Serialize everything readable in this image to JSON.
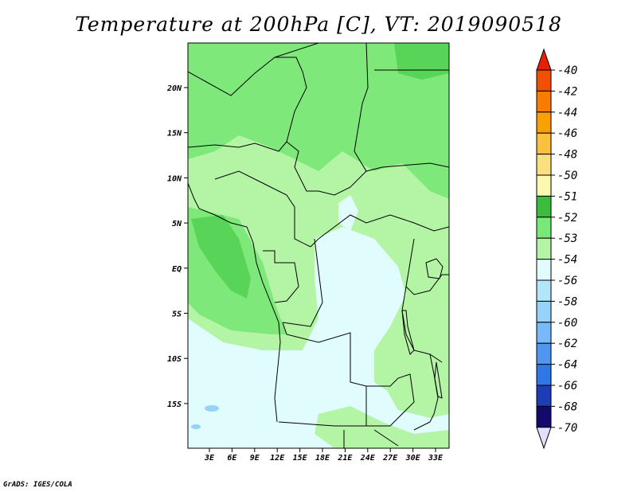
{
  "title": "Temperature at 200hPa [C], VT: 2019090518",
  "credit": "GrADS: IGES/COLA",
  "map": {
    "lat_labels": [
      "20N",
      "15N",
      "10N",
      "5N",
      "EQ",
      "5S",
      "10S",
      "15S"
    ],
    "lon_labels": [
      "3E",
      "6E",
      "9E",
      "12E",
      "15E",
      "18E",
      "21E",
      "24E",
      "27E",
      "30E",
      "33E"
    ],
    "lat_range": [
      -20.5,
      25
    ],
    "lon_range": [
      0.5,
      36
    ],
    "region_colors": {
      "paleblue": "#e0fcfc",
      "lightgreen": "#b4f5a5",
      "green": "#7ee87a",
      "darkgreen": "#58d459",
      "lakeblue": "#96d2fa"
    }
  },
  "colorbar": {
    "labels": [
      "-40",
      "-42",
      "-44",
      "-46",
      "-48",
      "-50",
      "-51",
      "-52",
      "-53",
      "-54",
      "-56",
      "-58",
      "-60",
      "-62",
      "-64",
      "-66",
      "-68",
      "-70"
    ],
    "colors": [
      "#e62000",
      "#f05000",
      "#f87c00",
      "#faa000",
      "#fac040",
      "#fce080",
      "#fcf8b0",
      "#3cbc3c",
      "#78e878",
      "#b4f5a5",
      "#e0fcfc",
      "#b4e6fa",
      "#96d2fa",
      "#78b9fa",
      "#5096f0",
      "#2e78e6",
      "#1e3cb4",
      "#140a6e",
      "#e0e0fa"
    ]
  }
}
